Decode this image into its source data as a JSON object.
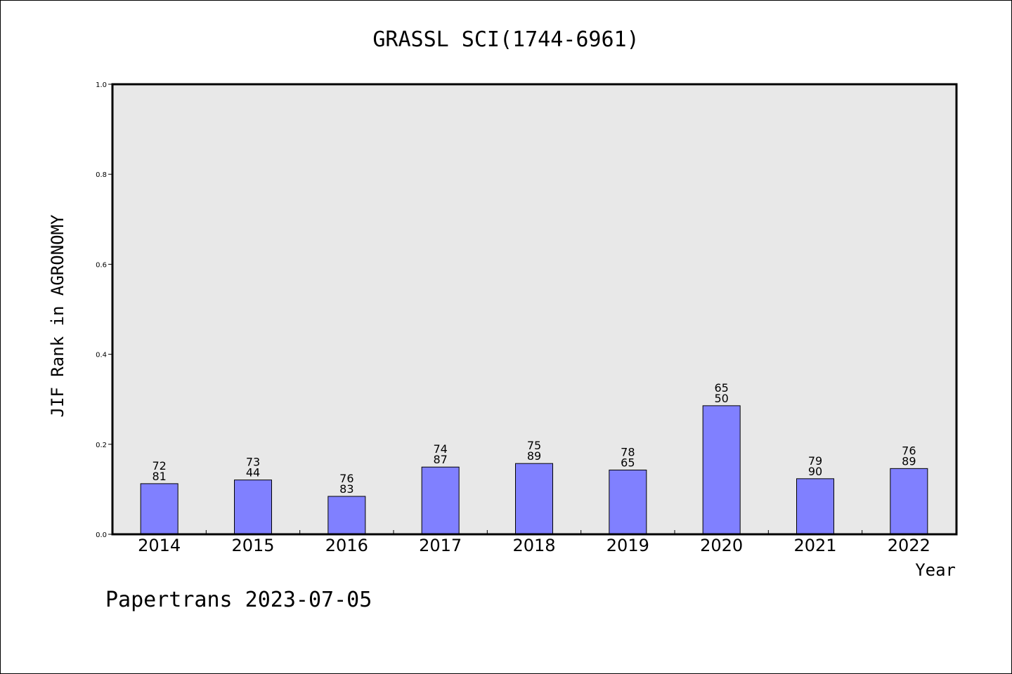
{
  "chart_data": {
    "type": "bar",
    "title": "GRASSL SCI(1744-6961)",
    "xlabel": "Year",
    "ylabel": "JIF Rank in AGRONOMY",
    "ylim": [
      0,
      1.0
    ],
    "yticks": [
      "0.0",
      "0.2",
      "0.4",
      "0.6",
      "0.8",
      "1.0"
    ],
    "grid": false,
    "bar_color": "#8080ff",
    "plot_background": "#e8e8e8",
    "categories": [
      "2014",
      "2015",
      "2016",
      "2017",
      "2018",
      "2019",
      "2020",
      "2021",
      "2022"
    ],
    "values": [
      0.1125,
      0.1207,
      0.0843,
      0.1494,
      0.1573,
      0.1428,
      0.2857,
      0.1235,
      0.1461
    ],
    "labels_top": [
      "72",
      "73",
      "76",
      "74",
      "75",
      "78",
      "65",
      "79",
      "76"
    ],
    "labels_bottom": [
      "81",
      "44",
      "83",
      "87",
      "89",
      "65",
      "50",
      "90",
      "89"
    ]
  },
  "footer": "Papertrans 2023-07-05"
}
